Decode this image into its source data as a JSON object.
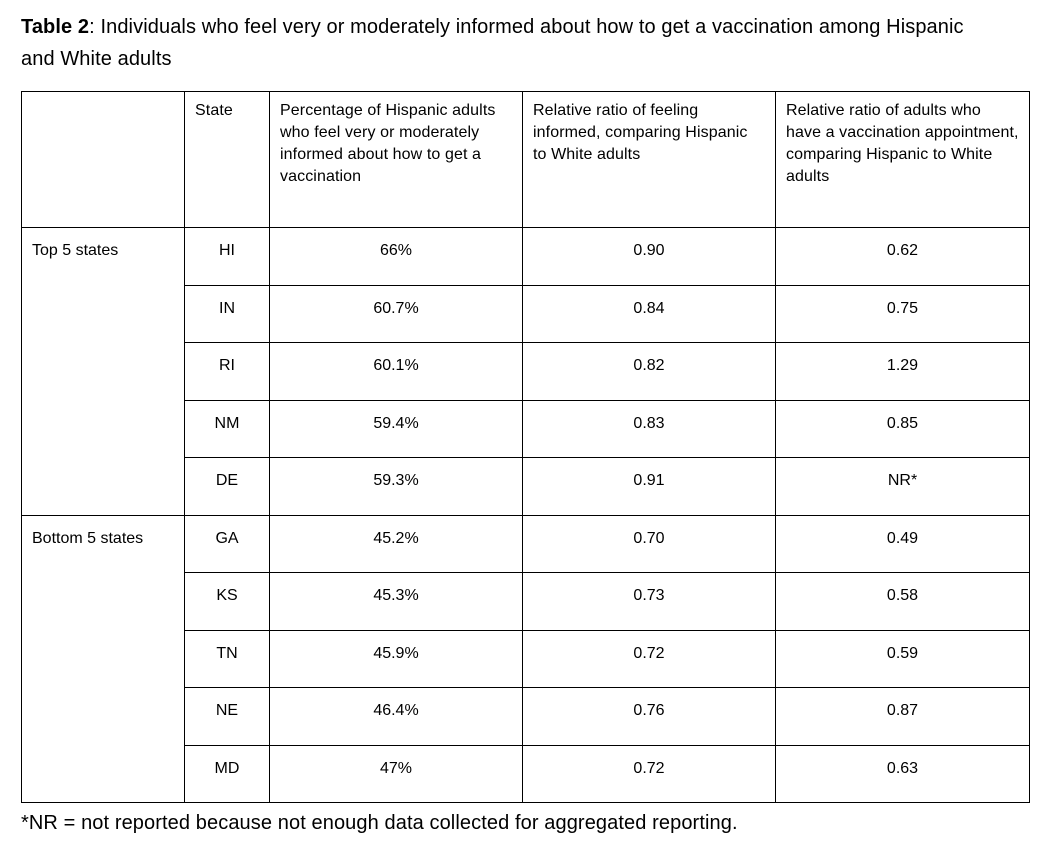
{
  "title": {
    "label": "Table 2",
    "rest": ": Individuals who feel very or moderately informed about how to get a vaccination among Hispanic and White adults"
  },
  "table": {
    "columns": [
      "",
      "State",
      "Percentage of Hispanic adults who feel very or moderately informed about how to get a vaccination",
      "Relative ratio of feeling informed, comparing Hispanic to White adults",
      "Relative ratio of adults who have a vaccination appointment, comparing Hispanic to White adults"
    ],
    "groups": [
      {
        "label": "Top 5 states",
        "rows": [
          [
            "HI",
            "66%",
            "0.90",
            "0.62"
          ],
          [
            "IN",
            "60.7%",
            "0.84",
            "0.75"
          ],
          [
            "RI",
            "60.1%",
            "0.82",
            "1.29"
          ],
          [
            "NM",
            "59.4%",
            "0.83",
            "0.85"
          ],
          [
            "DE",
            "59.3%",
            "0.91",
            "NR*"
          ]
        ]
      },
      {
        "label": "Bottom 5 states",
        "rows": [
          [
            "GA",
            "45.2%",
            "0.70",
            "0.49"
          ],
          [
            "KS",
            "45.3%",
            "0.73",
            "0.58"
          ],
          [
            "TN",
            "45.9%",
            "0.72",
            "0.59"
          ],
          [
            "NE",
            "46.4%",
            "0.76",
            "0.87"
          ],
          [
            "MD",
            "47%",
            "0.72",
            "0.63"
          ]
        ]
      }
    ]
  },
  "footnote": "*NR = not reported because not enough data collected for aggregated reporting.",
  "colors": {
    "text": "#000000",
    "background": "#ffffff",
    "border": "#000000"
  }
}
